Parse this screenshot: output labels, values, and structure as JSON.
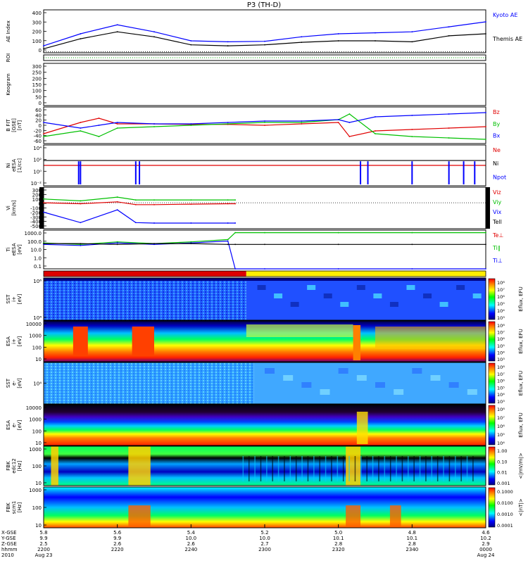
{
  "title": "P3 (TH-D)",
  "colors": {
    "blue": "#0000ff",
    "green": "#00e000",
    "red": "#e00000",
    "black": "#000000",
    "bar_red": "#dd0000",
    "bar_yellow": "#ffee00"
  },
  "panels": [
    {
      "id": "ae",
      "ylabel": "AE Index",
      "yticks": [
        "400",
        "300",
        "200",
        "100",
        "0"
      ],
      "right_labels": [
        {
          "text": "Kyoto AE",
          "color": "#0000ff"
        },
        {
          "text": "Themis AE",
          "color": "#000000"
        }
      ]
    },
    {
      "id": "roi",
      "ylabel": "ROI",
      "yticks": [],
      "right_labels": []
    },
    {
      "id": "keo",
      "ylabel": "Keogram",
      "yticks": [
        "300",
        "250",
        "200",
        "150",
        "100",
        "50",
        "0"
      ],
      "right_labels": []
    },
    {
      "id": "bfit",
      "ylabel": "B FIT\n[GSE]\n[nT]",
      "yticks": [
        "60",
        "40",
        "20",
        "0",
        "-20",
        "-40",
        "-60"
      ],
      "right_labels": [
        {
          "text": "Bz",
          "color": "#e00000"
        },
        {
          "text": "By",
          "color": "#00c000"
        },
        {
          "text": "Bx",
          "color": "#0000ff"
        }
      ]
    },
    {
      "id": "ni",
      "ylabel": "Ni\neESA\n[1/cc]",
      "yticks": [
        "10⁴",
        "10²",
        "10⁰",
        "10⁻²"
      ],
      "right_labels": [
        {
          "text": "Ne",
          "color": "#e00000"
        },
        {
          "text": "Ni",
          "color": "#000000"
        },
        {
          "text": "Npot",
          "color": "#0000ff"
        }
      ]
    },
    {
      "id": "vi",
      "ylabel": "Vi\n[km/s]",
      "yticks": [
        "300",
        "200",
        "100",
        "0",
        "-100",
        "-200",
        "-300",
        "-400",
        "-500"
      ],
      "right_labels": [
        {
          "text": "Viz",
          "color": "#e00000"
        },
        {
          "text": "Viy",
          "color": "#00c000"
        },
        {
          "text": "Vix",
          "color": "#0000ff"
        },
        {
          "text": "Tell",
          "color": "#000000"
        }
      ]
    },
    {
      "id": "ti",
      "ylabel": "Ti\neESA\n[eV]",
      "yticks": [
        "1000.0",
        "100.0",
        "10.0",
        "1.0",
        "0.1"
      ],
      "right_labels": [
        {
          "text": "Te⊥",
          "color": "#e00000"
        },
        {
          "text": "Ti∥",
          "color": "#00c000"
        },
        {
          "text": "Ti⊥",
          "color": "#0000ff"
        }
      ]
    },
    {
      "id": "sst_i",
      "ylabel": "SST\ni+\n[eV]",
      "yticks": [
        "10⁶",
        "10⁴"
      ],
      "right_labels": []
    },
    {
      "id": "esa_i",
      "ylabel": "ESA\ni+\n[eV]",
      "yticks": [
        "10000",
        "1000",
        "100",
        "10"
      ],
      "right_labels": []
    },
    {
      "id": "sst_e",
      "ylabel": "SST\ne-\n[eV]",
      "yticks": [
        "10⁴"
      ],
      "right_labels": []
    },
    {
      "id": "esa_e",
      "ylabel": "ESA\ne-\n[eV]",
      "yticks": [
        "10000",
        "1000",
        "100",
        "10"
      ],
      "right_labels": []
    },
    {
      "id": "fbk_e",
      "ylabel": "FBK\nedc12\n[Hz]",
      "yticks": [
        "1000",
        "100",
        "10"
      ],
      "right_labels": []
    },
    {
      "id": "fbk_b",
      "ylabel": "FBK\nscm1\n[Hz]",
      "yticks": [
        "1000",
        "100",
        "10"
      ],
      "right_labels": []
    }
  ],
  "colorbars": [
    {
      "id": "cb_sst_i",
      "label": "Eflux, EFU",
      "ticks": [
        "10⁸",
        "10⁷",
        "10⁶",
        "10⁵",
        "10⁴",
        "10³"
      ]
    },
    {
      "id": "cb_esa_i",
      "label": "Eflux, EFU",
      "ticks": [
        "10⁸",
        "10⁷",
        "10⁶",
        "10⁵",
        "10⁴",
        "10³"
      ]
    },
    {
      "id": "cb_sst_e",
      "label": "Eflux, EFU",
      "ticks": [
        "10⁸",
        "10⁷",
        "10⁶",
        "10⁵",
        "10⁴",
        "10³"
      ]
    },
    {
      "id": "cb_esa_e",
      "label": "Eflux, EFU",
      "ticks": [
        "10⁸",
        "10⁷",
        "10⁶",
        "10⁵",
        "10⁴"
      ]
    },
    {
      "id": "cb_fbk_e",
      "label": "<|mV/m|>",
      "ticks": [
        "1.00",
        "0.10",
        "0.01",
        "0.001"
      ]
    },
    {
      "id": "cb_fbk_b",
      "label": "<|nT|>",
      "ticks": [
        "0.1000",
        "0.0100",
        "0.0010",
        "0.0001"
      ]
    }
  ],
  "x_axis": {
    "row_labels": [
      "X-GSE",
      "Y-GSE",
      "Z-GSE",
      "hhmm",
      "2010"
    ],
    "ticks": [
      {
        "x": 0,
        "vals": [
          "5.8",
          "9.9",
          "2.5",
          "2200",
          "Aug 23"
        ]
      },
      {
        "x": 20,
        "vals": [
          "5.6",
          "9.9",
          "2.6",
          "2220",
          ""
        ]
      },
      {
        "x": 40,
        "vals": [
          "5.4",
          "10.0",
          "2.6",
          "2240",
          ""
        ]
      },
      {
        "x": 60,
        "vals": [
          "5.2",
          "10.0",
          "2.7",
          "2300",
          ""
        ]
      },
      {
        "x": 80,
        "vals": [
          "5.0",
          "10.1",
          "2.8",
          "2320",
          ""
        ]
      },
      {
        "x": 100,
        "vals": [
          "4.8",
          "10.1",
          "2.8",
          "2340",
          ""
        ]
      },
      {
        "x": 120,
        "vals": [
          "4.6",
          "10.2",
          "2.9",
          "0000",
          "Aug 24"
        ]
      }
    ]
  },
  "chart_data": [
    {
      "type": "line",
      "panel": "ae",
      "x": [
        0,
        10,
        20,
        30,
        40,
        50,
        60,
        70,
        80,
        90,
        100,
        110,
        120
      ],
      "series": [
        {
          "name": "Kyoto AE",
          "color": "#0000ff",
          "values": [
            60,
            180,
            270,
            200,
            110,
            100,
            105,
            150,
            180,
            190,
            200,
            250,
            300
          ]
        },
        {
          "name": "Themis AE",
          "color": "#000000",
          "values": [
            30,
            130,
            200,
            150,
            70,
            60,
            70,
            95,
            110,
            110,
            100,
            160,
            180
          ]
        }
      ]
    },
    {
      "type": "line",
      "panel": "bfit",
      "x": [
        0,
        10,
        15,
        20,
        30,
        40,
        50,
        60,
        70,
        80,
        83,
        90,
        100,
        110,
        120
      ],
      "series": [
        {
          "name": "Bz",
          "color": "#e00000",
          "values": [
            -30,
            10,
            25,
            5,
            5,
            3,
            3,
            0,
            5,
            10,
            -40,
            -20,
            -15,
            -10,
            -5
          ]
        },
        {
          "name": "By",
          "color": "#00c000",
          "values": [
            -40,
            -20,
            -40,
            -10,
            -5,
            0,
            5,
            10,
            10,
            20,
            40,
            -30,
            -40,
            -45,
            -50
          ]
        },
        {
          "name": "Bx",
          "color": "#0000ff",
          "values": [
            10,
            -10,
            0,
            10,
            5,
            5,
            10,
            15,
            15,
            20,
            10,
            30,
            35,
            40,
            45
          ]
        }
      ]
    },
    {
      "type": "line",
      "panel": "vi",
      "x": [
        0,
        10,
        20,
        25,
        30,
        40,
        50,
        52
      ],
      "series": [
        {
          "name": "Viz",
          "color": "#e00000",
          "values": [
            0,
            -20,
            20,
            -40,
            -40,
            -30,
            -20,
            -20
          ]
        },
        {
          "name": "Viy",
          "color": "#00c000",
          "values": [
            80,
            40,
            120,
            60,
            60,
            60,
            60,
            60
          ]
        },
        {
          "name": "Vix",
          "color": "#0000ff",
          "values": [
            -200,
            -420,
            -150,
            -420,
            -430,
            -430,
            -430,
            -430
          ]
        }
      ]
    },
    {
      "type": "line",
      "panel": "ti",
      "x": [
        0,
        10,
        20,
        30,
        40,
        50,
        52,
        60,
        80,
        100,
        120
      ],
      "series": [
        {
          "name": "Ti∥",
          "color": "#00c000",
          "values": [
            60,
            40,
            80,
            50,
            80,
            150,
            1000,
            1000,
            1000,
            1000,
            1000
          ]
        },
        {
          "name": "Ti⊥",
          "color": "#0000ff",
          "values": [
            40,
            30,
            60,
            40,
            60,
            100,
            0,
            0,
            0,
            0,
            0
          ]
        },
        {
          "name": "Te⊥",
          "color": "#000000",
          "values": [
            50,
            50,
            40,
            50,
            50,
            40,
            40,
            40,
            40,
            40,
            40
          ]
        }
      ]
    }
  ]
}
